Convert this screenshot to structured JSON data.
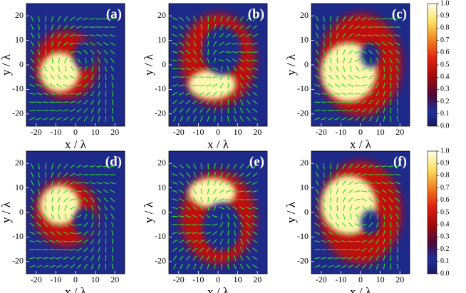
{
  "chart_data": [
    {
      "type": "heatmap",
      "label": "(a)",
      "xlabel": "x / λ",
      "ylabel": "y / λ",
      "xlim": [
        -25,
        25
      ],
      "ylim": [
        -25,
        25
      ],
      "xticks": [
        -20,
        -10,
        0,
        10,
        20
      ],
      "yticks": [
        -20,
        -10,
        0,
        10,
        20
      ]
    },
    {
      "type": "heatmap",
      "label": "(b)",
      "xlabel": "x / λ",
      "ylabel": "y / λ",
      "xlim": [
        -25,
        25
      ],
      "ylim": [
        -25,
        25
      ],
      "xticks": [
        -20,
        -10,
        0,
        10,
        20
      ],
      "yticks": [
        -20,
        -10,
        0,
        10,
        20
      ]
    },
    {
      "type": "heatmap",
      "label": "(c)",
      "xlabel": "x / λ",
      "ylabel": "y / λ",
      "xlim": [
        -25,
        25
      ],
      "ylim": [
        -25,
        25
      ],
      "xticks": [
        -20,
        -10,
        0,
        10,
        20
      ],
      "yticks": [
        -20,
        -10,
        0,
        10,
        20
      ],
      "colorbar_lim": [
        0,
        1
      ],
      "colorbar_ticks": [
        {
          "value": 0,
          "label": "0.0"
        },
        0.1,
        0.2,
        0.3,
        0.4,
        0.5,
        0.6,
        0.7,
        0.8,
        0.9,
        {
          "value": 1,
          "label": "1.0"
        }
      ]
    },
    {
      "type": "heatmap",
      "label": "(d)",
      "xlabel": "x / λ",
      "ylabel": "y / λ",
      "xlim": [
        -25,
        25
      ],
      "ylim": [
        -25,
        25
      ],
      "xticks": [
        -20,
        -10,
        0,
        10,
        20
      ],
      "yticks": [
        -20,
        -10,
        0,
        10,
        20
      ]
    },
    {
      "type": "heatmap",
      "label": "(e)",
      "xlabel": "x / λ",
      "ylabel": "y / λ",
      "xlim": [
        -25,
        25
      ],
      "ylim": [
        -25,
        25
      ],
      "xticks": [
        -20,
        -10,
        0,
        10,
        20
      ],
      "yticks": [
        -20,
        -10,
        0,
        10,
        20
      ]
    },
    {
      "type": "heatmap",
      "label": "(f)",
      "xlabel": "x / λ",
      "ylabel": "y / λ",
      "xlim": [
        -25,
        25
      ],
      "ylim": [
        -25,
        25
      ],
      "xticks": [
        -20,
        -10,
        0,
        10,
        20
      ],
      "yticks": [
        -20,
        -10,
        0,
        10,
        20
      ],
      "colorbar_lim": [
        0,
        1
      ],
      "colorbar_ticks": [
        {
          "value": 0,
          "label": "0.0"
        },
        0.1,
        0.2,
        0.3,
        0.4,
        0.5,
        0.6,
        0.7,
        0.8,
        0.9,
        {
          "value": 1,
          "label": "1.0"
        }
      ]
    }
  ]
}
